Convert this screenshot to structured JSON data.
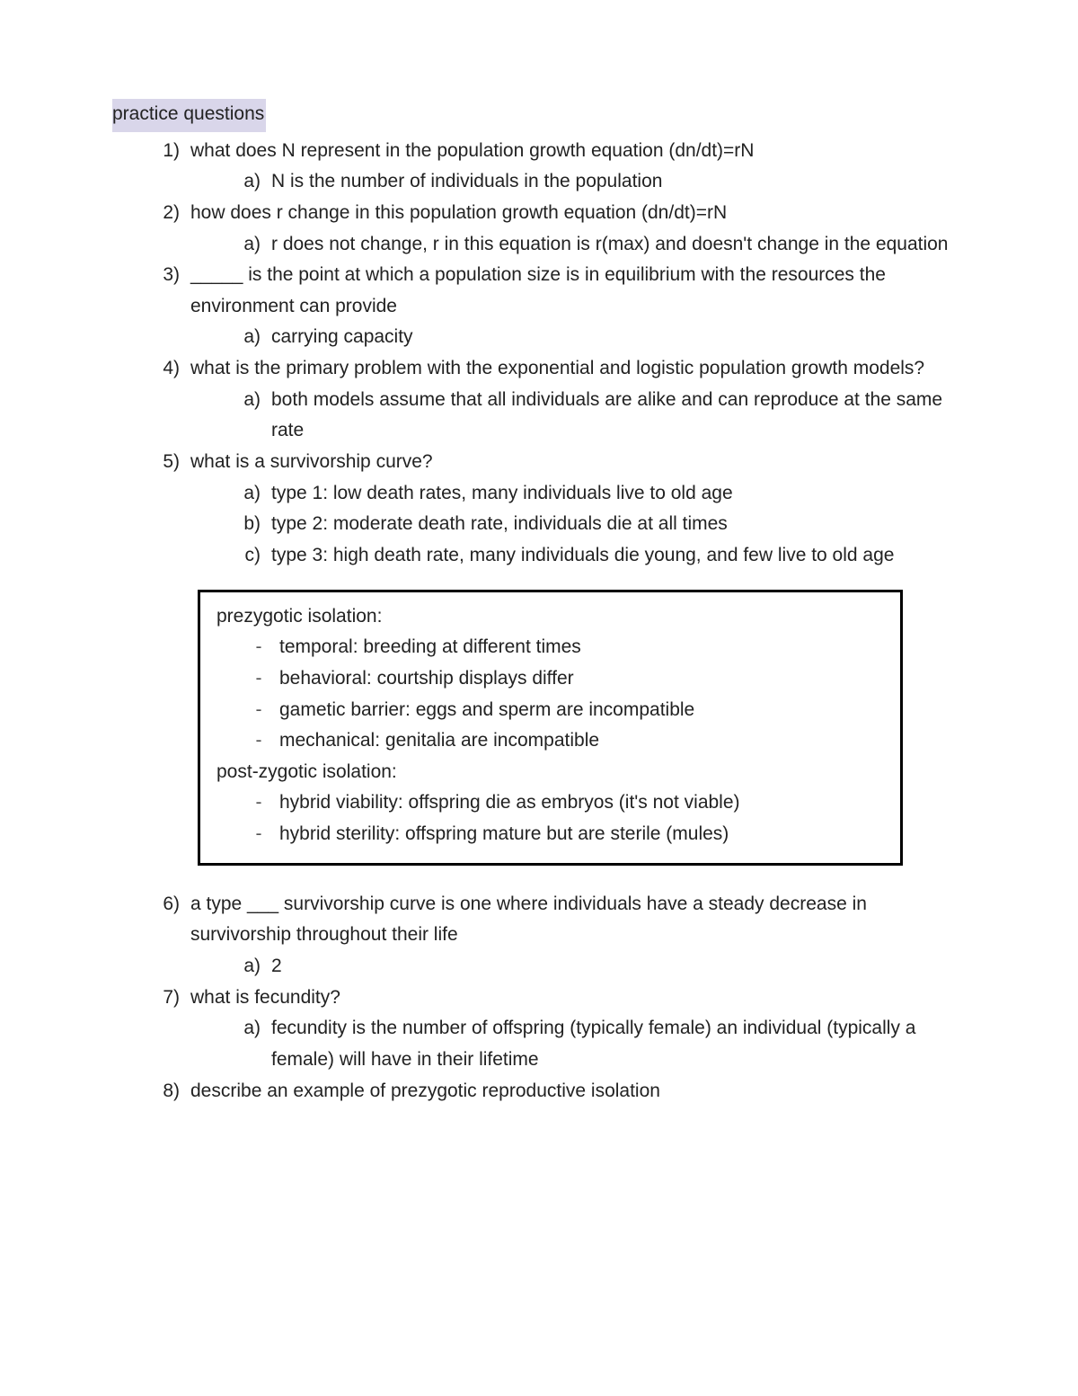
{
  "title": "practice questions",
  "colors": {
    "highlight": "#d9d6ea",
    "text": "#222222",
    "box_border": "#000000",
    "background": "#ffffff"
  },
  "font": {
    "family": "Helvetica Neue, Arial, sans-serif",
    "size_pt": 16,
    "line_height": 1.65
  },
  "questions": [
    {
      "num": "1)",
      "text": "what does N represent in the population growth equation (dn/dt)=rN",
      "answers": [
        {
          "letter": "a)",
          "text": "N is the number of individuals in the population"
        }
      ]
    },
    {
      "num": "2)",
      "text": "how does r change in this population growth equation (dn/dt)=rN",
      "answers": [
        {
          "letter": "a)",
          "text": "r does not change, r in this equation is r(max) and doesn't change in the equation"
        }
      ]
    },
    {
      "num": "3)",
      "text": "_____ is the point at which a population size is in equilibrium with the resources the environment can provide",
      "answers": [
        {
          "letter": "a)",
          "text": "carrying capacity"
        }
      ]
    },
    {
      "num": "4)",
      "text": "what is the primary problem with the exponential and logistic population growth models?",
      "answers": [
        {
          "letter": "a)",
          "text": "both models assume that all individuals are alike and can reproduce at the same rate"
        }
      ]
    },
    {
      "num": "5)",
      "text": "what is a survivorship curve?",
      "answers": [
        {
          "letter": "a)",
          "text": "type 1: low death rates, many individuals live to old age"
        },
        {
          "letter": "b)",
          "text": "type 2: moderate death rate, individuals die at all times"
        },
        {
          "letter": "c)",
          "text": "type 3: high death rate, many individuals die young, and few live to old age"
        }
      ]
    }
  ],
  "box": {
    "sections": [
      {
        "heading": "prezygotic isolation:",
        "items": [
          "temporal: breeding at different times",
          "behavioral: courtship displays differ",
          "gametic barrier: eggs and sperm are incompatible",
          "mechanical: genitalia are incompatible"
        ]
      },
      {
        "heading": "post-zygotic isolation:",
        "items": [
          "hybrid viability: offspring die as embryos (it's not viable)",
          "hybrid sterility: offspring mature but are sterile (mules)"
        ]
      }
    ]
  },
  "questions_after": [
    {
      "num": "6)",
      "text": "a type ___ survivorship curve is one where individuals have a steady decrease in survivorship throughout their life",
      "answers": [
        {
          "letter": "a)",
          "text": "2"
        }
      ]
    },
    {
      "num": "7)",
      "text": "what is fecundity?",
      "answers": [
        {
          "letter": "a)",
          "text": "fecundity is the number of offspring (typically female) an individual (typically a female) will have in their lifetime"
        }
      ]
    },
    {
      "num": "8)",
      "text": "describe an example of prezygotic reproductive isolation",
      "answers": []
    }
  ]
}
